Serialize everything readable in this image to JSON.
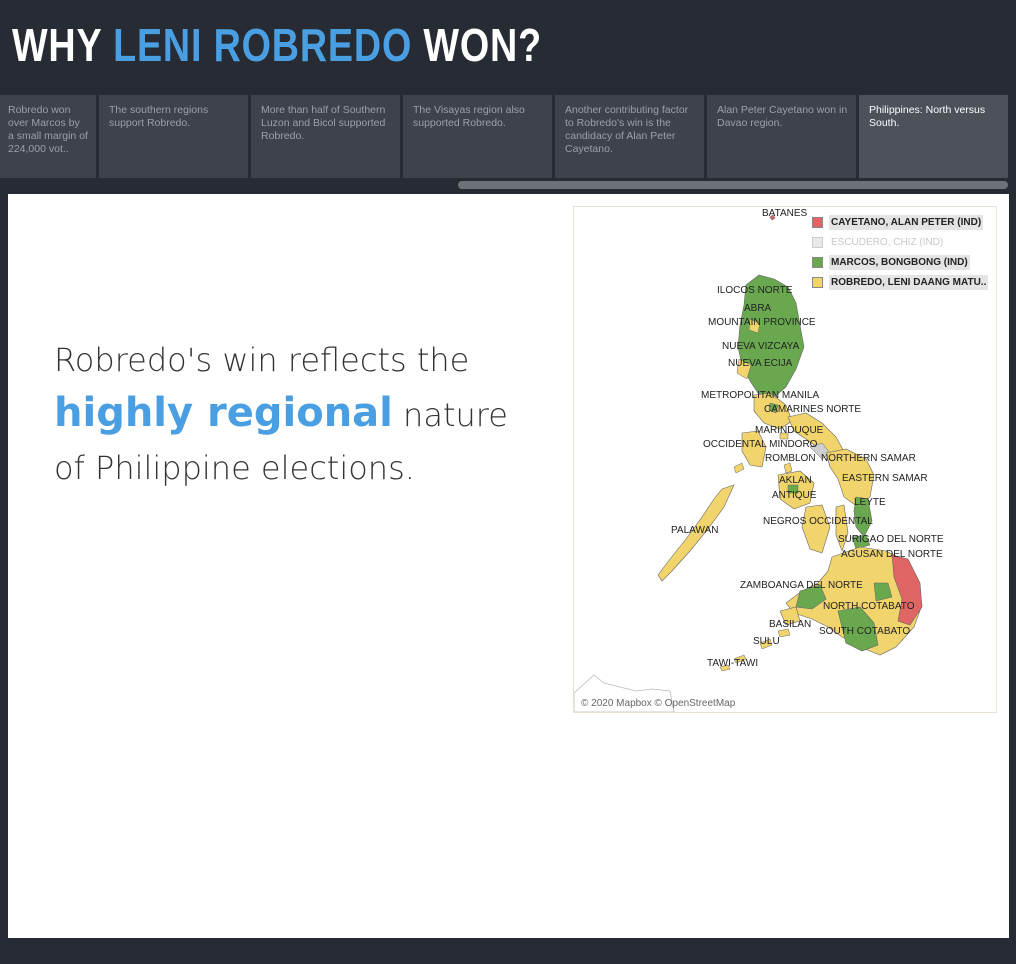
{
  "header": {
    "title_prefix": "WHY ",
    "title_highlight": "LENI ROBREDO",
    "title_suffix": " WON?"
  },
  "story_points": [
    "Robredo won over Marcos by a small margin of 224,000 vot..",
    "The southern regions support Robredo.",
    "More than half of Southern Luzon and Bicol supported Robredo.",
    "The Visayas region also supported Robredo.",
    "Another contributing factor to Robredo's win is the candidacy of Alan Peter Cayetano.",
    "Alan Peter Cayetano won in Davao region.",
    "Philippines: North versus South."
  ],
  "active_story_point": 6,
  "caption": {
    "line1": "Robredo's win reflects the",
    "highlight": "highly regional",
    "line2_rest": " nature",
    "line3": "of Philippine elections."
  },
  "map": {
    "legend": [
      {
        "label": "CAYETANO, ALAN PETER (IND)",
        "color": "#e06666",
        "faded": false
      },
      {
        "label": "ESCUDERO, CHIZ (IND)",
        "color": "#e9e9e9",
        "faded": true
      },
      {
        "label": "MARCOS, BONGBONG (IND)",
        "color": "#6aa84f",
        "faded": false
      },
      {
        "label": "ROBREDO, LENI DAANG MATU..",
        "color": "#f1d46b",
        "faded": false
      }
    ],
    "labels": {
      "batanes": "BATANES",
      "ilocos_norte": "ILOCOS NORTE",
      "abra": "ABRA",
      "mountain_province": "MOUNTAIN PROVINCE",
      "nueva_vizcaya": "NUEVA VIZCAYA",
      "nueva_ecija": "NUEVA ECIJA",
      "metro_manila": "METROPOLITAN MANILA",
      "camarines_norte": "CAMARINES NORTE",
      "marinduque": "MARINDUQUE",
      "occidental_mindoro": "OCCIDENTAL MINDORO",
      "romblon": "ROMBLON",
      "northern_samar": "NORTHERN SAMAR",
      "aklan": "AKLAN",
      "eastern_samar": "EASTERN SAMAR",
      "antique": "ANTIQUE",
      "leyte": "LEYTE",
      "negros_occidental": "NEGROS OCCIDENTAL",
      "palawan": "PALAWAN",
      "surigao_del_norte": "SURIGAO DEL NORTE",
      "agusan_del_norte": "AGUSAN DEL NORTE",
      "zamboanga_del_norte": "ZAMBOANGA DEL NORTE",
      "north_cotabato": "NORTH COTABATO",
      "basilan": "BASILAN",
      "south_cotabato": "SOUTH COTABATO",
      "sulu": "SULU",
      "tawi_tawi": "TAWI-TAWI"
    },
    "attribution": "© 2020 Mapbox © OpenStreetMap"
  }
}
